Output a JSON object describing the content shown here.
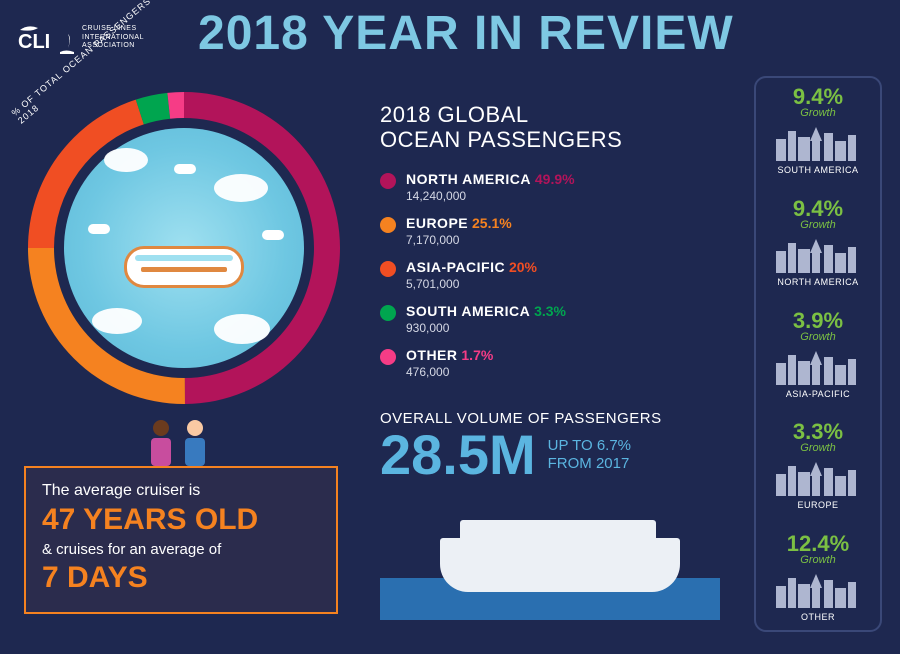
{
  "background_color": "#1e2850",
  "header": {
    "title": "2018 YEAR IN REVIEW",
    "title_color": "#7ec8e3",
    "title_fontsize": 48,
    "logo_lines": [
      "CRUISE LINES",
      "INTERNATIONAL",
      "ASSOCIATION"
    ],
    "logo_prefix": "CLI"
  },
  "donut": {
    "label": "% OF TOTAL OCEAN PASSENGERS 2018",
    "label_fontsize": 9,
    "center_fill": "#6ec7e2",
    "ring_thickness": 26,
    "series": [
      {
        "key": "na",
        "pct": 49.9,
        "color": "#b2145a"
      },
      {
        "key": "eu",
        "pct": 25.1,
        "color": "#f58220"
      },
      {
        "key": "ap",
        "pct": 20.0,
        "color": "#f04e23"
      },
      {
        "key": "sa",
        "pct": 3.3,
        "color": "#00a54f"
      },
      {
        "key": "other",
        "pct": 1.7,
        "color": "#f63c86"
      }
    ]
  },
  "passengers": {
    "heading": "2018 GLOBAL\nOCEAN PASSENGERS",
    "heading_fontsize": 22,
    "items": [
      {
        "region": "NORTH AMERICA",
        "pct": "49.9%",
        "count": "14,240,000",
        "color": "#b2145a"
      },
      {
        "region": "EUROPE",
        "pct": "25.1%",
        "count": "7,170,000",
        "color": "#f58220"
      },
      {
        "region": "ASIA-PACIFIC",
        "pct": "20%",
        "count": "5,701,000",
        "color": "#f04e23"
      },
      {
        "region": "SOUTH AMERICA",
        "pct": "3.3%",
        "count": "930,000",
        "color": "#00a54f"
      },
      {
        "region": "OTHER",
        "pct": "1.7%",
        "count": "476,000",
        "color": "#f63c86"
      }
    ],
    "region_fontsize": 14,
    "count_fontsize": 12
  },
  "volume": {
    "overline": "OVERALL VOLUME OF PASSENGERS",
    "big_value": "28.5M",
    "big_color": "#5bb5e0",
    "big_fontsize": 56,
    "up_line1": "UP TO 6.7%",
    "up_line2": "FROM 2017",
    "water_color": "#2a6fb0"
  },
  "avg_box": {
    "border_color": "#f58220",
    "line1": "The average cruiser is",
    "age": "47 YEARS OLD",
    "line3": "& cruises for an average of",
    "days": "7 DAYS",
    "accent_color": "#f58220",
    "person_colors": {
      "left_head": "#6b3b1e",
      "left_body": "#c84d9e",
      "right_head": "#f9c9a3",
      "right_body": "#387abf"
    }
  },
  "growth": {
    "border_color": "#3a4878",
    "pct_color": "#7bc043",
    "pct_fontsize": 22,
    "growth_label": "Growth",
    "skyline_fill": "#aeb6d0",
    "items": [
      {
        "pct": "9.4%",
        "region": "SOUTH AMERICA"
      },
      {
        "pct": "9.4%",
        "region": "NORTH AMERICA"
      },
      {
        "pct": "3.9%",
        "region": "ASIA-PACIFIC"
      },
      {
        "pct": "3.3%",
        "region": "EUROPE"
      },
      {
        "pct": "12.4%",
        "region": "OTHER"
      }
    ]
  }
}
